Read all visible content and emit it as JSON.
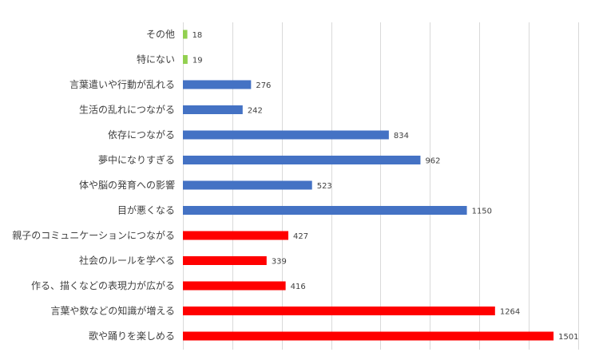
{
  "chart_data": {
    "type": "bar",
    "orientation": "horizontal",
    "categories": [
      "その他",
      "特にない",
      "言葉遣いや行動が乱れる",
      "生活の乱れにつながる",
      "依存につながる",
      "夢中になりすぎる",
      "体や脳の発育への影響",
      "目が悪くなる",
      "親子のコミュニケーションにつながる",
      "社会のルールを学べる",
      "作る、描くなどの表現力が広がる",
      "言葉や数などの知識が増える",
      "歌や踊りを楽しめる"
    ],
    "values": [
      18,
      19,
      276,
      242,
      834,
      962,
      523,
      1150,
      427,
      339,
      416,
      1264,
      1501
    ],
    "bar_colors": [
      "#92d050",
      "#92d050",
      "#4472c4",
      "#4472c4",
      "#4472c4",
      "#4472c4",
      "#4472c4",
      "#4472c4",
      "#ff0000",
      "#ff0000",
      "#ff0000",
      "#ff0000",
      "#ff0000"
    ],
    "xlim": [
      0,
      1600
    ],
    "grid": true,
    "legend": "none",
    "data_labels": true
  }
}
